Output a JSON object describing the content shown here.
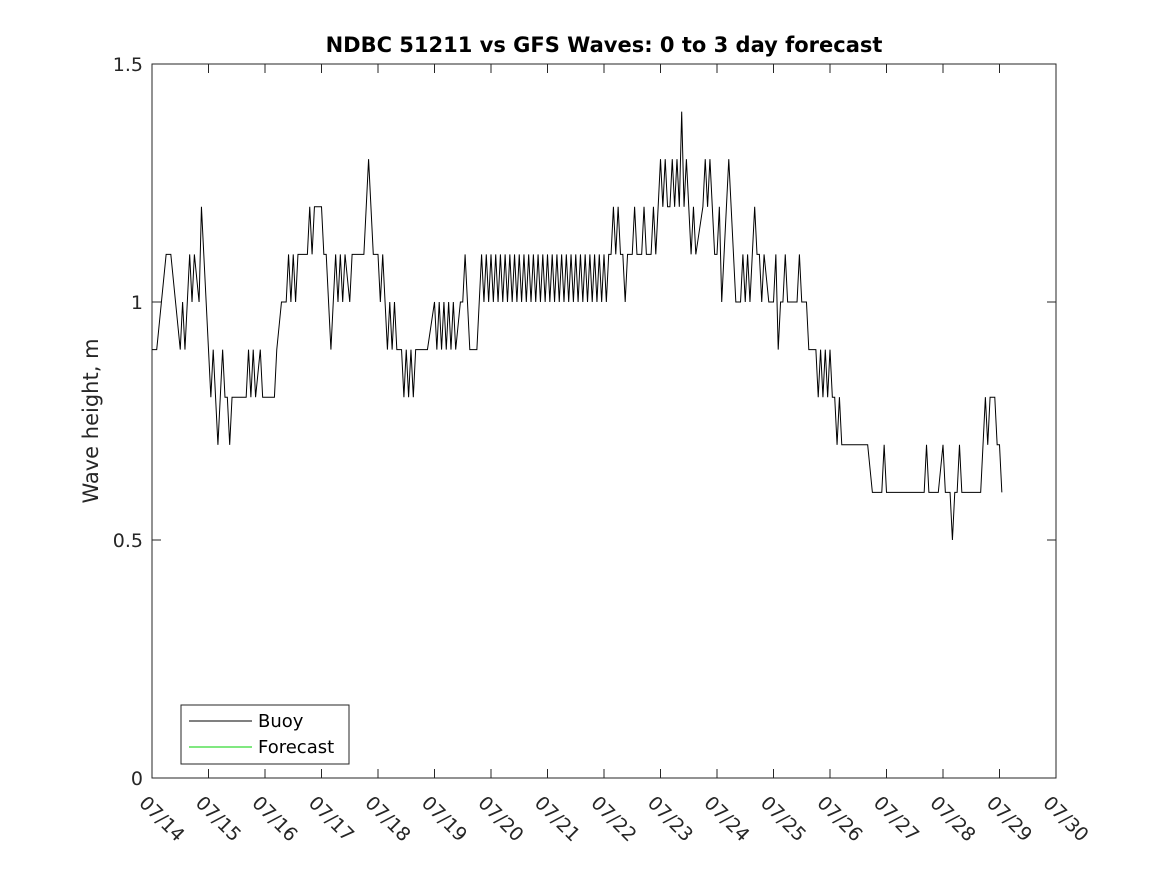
{
  "chart_data": {
    "type": "line",
    "title": "NDBC 51211 vs GFS Waves: 0 to 3 day forecast",
    "xlabel": "",
    "ylabel": "Wave height, m",
    "x_ticks": [
      "07/14",
      "07/15",
      "07/16",
      "07/17",
      "07/18",
      "07/19",
      "07/20",
      "07/21",
      "07/22",
      "07/23",
      "07/24",
      "07/25",
      "07/26",
      "07/27",
      "07/28",
      "07/29",
      "07/30"
    ],
    "xlim": [
      "2023-07-14",
      "2023-07-30"
    ],
    "y_ticks": [
      "0",
      "0.5",
      "1",
      "1.5"
    ],
    "ylim": [
      0,
      1.5
    ],
    "grid": false,
    "legend": "bottom-left",
    "series": [
      {
        "name": "Buoy",
        "color": "#000000",
        "points": [
          [
            "07/14 00:00",
            0.9
          ],
          [
            "07/14 02:00",
            0.9
          ],
          [
            "07/14 04:00",
            1.0
          ],
          [
            "07/14 06:00",
            1.1
          ],
          [
            "07/14 08:00",
            1.1
          ],
          [
            "07/14 10:00",
            1.0
          ],
          [
            "07/14 12:00",
            0.9
          ],
          [
            "07/14 13:00",
            1.0
          ],
          [
            "07/14 14:00",
            0.9
          ],
          [
            "07/14 15:00",
            1.0
          ],
          [
            "07/14 16:00",
            1.1
          ],
          [
            "07/14 17:00",
            1.0
          ],
          [
            "07/14 18:00",
            1.1
          ],
          [
            "07/14 20:00",
            1.0
          ],
          [
            "07/14 21:00",
            1.2
          ],
          [
            "07/14 22:00",
            1.1
          ],
          [
            "07/14 23:00",
            1.0
          ],
          [
            "07/15 00:00",
            0.9
          ],
          [
            "07/15 01:00",
            0.8
          ],
          [
            "07/15 02:00",
            0.9
          ],
          [
            "07/15 03:00",
            0.8
          ],
          [
            "07/15 04:00",
            0.7
          ],
          [
            "07/15 05:00",
            0.8
          ],
          [
            "07/15 06:00",
            0.9
          ],
          [
            "07/15 07:00",
            0.8
          ],
          [
            "07/15 08:00",
            0.8
          ],
          [
            "07/15 09:00",
            0.7
          ],
          [
            "07/15 10:00",
            0.8
          ],
          [
            "07/15 12:00",
            0.8
          ],
          [
            "07/15 16:00",
            0.8
          ],
          [
            "07/15 17:00",
            0.9
          ],
          [
            "07/15 18:00",
            0.8
          ],
          [
            "07/15 19:00",
            0.9
          ],
          [
            "07/15 20:00",
            0.8
          ],
          [
            "07/15 22:00",
            0.9
          ],
          [
            "07/15 23:00",
            0.8
          ],
          [
            "07/16 00:00",
            0.8
          ],
          [
            "07/16 04:00",
            0.8
          ],
          [
            "07/16 05:00",
            0.9
          ],
          [
            "07/16 07:00",
            1.0
          ],
          [
            "07/16 09:00",
            1.0
          ],
          [
            "07/16 10:00",
            1.1
          ],
          [
            "07/16 11:00",
            1.0
          ],
          [
            "07/16 12:00",
            1.1
          ],
          [
            "07/16 13:00",
            1.0
          ],
          [
            "07/16 14:00",
            1.1
          ],
          [
            "07/16 18:00",
            1.1
          ],
          [
            "07/16 19:00",
            1.2
          ],
          [
            "07/16 20:00",
            1.1
          ],
          [
            "07/16 21:00",
            1.2
          ],
          [
            "07/17 00:00",
            1.2
          ],
          [
            "07/17 01:00",
            1.1
          ],
          [
            "07/17 02:00",
            1.1
          ],
          [
            "07/17 03:00",
            1.0
          ],
          [
            "07/17 04:00",
            0.9
          ],
          [
            "07/17 05:00",
            1.0
          ],
          [
            "07/17 06:00",
            1.1
          ],
          [
            "07/17 07:00",
            1.0
          ],
          [
            "07/17 08:00",
            1.1
          ],
          [
            "07/17 09:00",
            1.0
          ],
          [
            "07/17 10:00",
            1.1
          ],
          [
            "07/17 12:00",
            1.0
          ],
          [
            "07/17 13:00",
            1.1
          ],
          [
            "07/17 18:00",
            1.1
          ],
          [
            "07/17 19:00",
            1.2
          ],
          [
            "07/17 20:00",
            1.3
          ],
          [
            "07/17 21:00",
            1.2
          ],
          [
            "07/17 22:00",
            1.1
          ],
          [
            "07/18 00:00",
            1.1
          ],
          [
            "07/18 01:00",
            1.0
          ],
          [
            "07/18 02:00",
            1.1
          ],
          [
            "07/18 03:00",
            1.0
          ],
          [
            "07/18 04:00",
            0.9
          ],
          [
            "07/18 05:00",
            1.0
          ],
          [
            "07/18 06:00",
            0.9
          ],
          [
            "07/18 07:00",
            1.0
          ],
          [
            "07/18 08:00",
            0.9
          ],
          [
            "07/18 10:00",
            0.9
          ],
          [
            "07/18 11:00",
            0.8
          ],
          [
            "07/18 12:00",
            0.9
          ],
          [
            "07/18 13:00",
            0.8
          ],
          [
            "07/18 14:00",
            0.9
          ],
          [
            "07/18 15:00",
            0.8
          ],
          [
            "07/18 16:00",
            0.9
          ],
          [
            "07/18 21:00",
            0.9
          ],
          [
            "07/19 00:00",
            1.0
          ],
          [
            "07/19 01:00",
            0.9
          ],
          [
            "07/19 02:00",
            1.0
          ],
          [
            "07/19 03:00",
            0.9
          ],
          [
            "07/19 04:00",
            1.0
          ],
          [
            "07/19 05:00",
            0.9
          ],
          [
            "07/19 06:00",
            1.0
          ],
          [
            "07/19 07:00",
            0.9
          ],
          [
            "07/19 08:00",
            1.0
          ],
          [
            "07/19 09:00",
            0.9
          ],
          [
            "07/19 11:00",
            1.0
          ],
          [
            "07/19 12:00",
            1.0
          ],
          [
            "07/19 13:00",
            1.1
          ],
          [
            "07/19 14:00",
            1.0
          ],
          [
            "07/19 15:00",
            0.9
          ],
          [
            "07/19 18:00",
            0.9
          ],
          [
            "07/19 19:00",
            1.0
          ],
          [
            "07/19 20:00",
            1.1
          ],
          [
            "07/19 21:00",
            1.0
          ],
          [
            "07/19 22:00",
            1.1
          ],
          [
            "07/19 23:00",
            1.0
          ],
          [
            "07/20 00:00",
            1.1
          ],
          [
            "07/20 01:00",
            1.0
          ],
          [
            "07/20 02:00",
            1.1
          ],
          [
            "07/20 03:00",
            1.0
          ],
          [
            "07/20 04:00",
            1.1
          ],
          [
            "07/20 05:00",
            1.0
          ],
          [
            "07/20 06:00",
            1.1
          ],
          [
            "07/20 07:00",
            1.0
          ],
          [
            "07/20 08:00",
            1.1
          ],
          [
            "07/20 09:00",
            1.0
          ],
          [
            "07/20 10:00",
            1.1
          ],
          [
            "07/20 11:00",
            1.0
          ],
          [
            "07/20 12:00",
            1.1
          ],
          [
            "07/20 13:00",
            1.0
          ],
          [
            "07/20 14:00",
            1.1
          ],
          [
            "07/20 15:00",
            1.0
          ],
          [
            "07/20 16:00",
            1.1
          ],
          [
            "07/20 17:00",
            1.0
          ],
          [
            "07/20 18:00",
            1.1
          ],
          [
            "07/20 19:00",
            1.0
          ],
          [
            "07/20 20:00",
            1.1
          ],
          [
            "07/20 21:00",
            1.0
          ],
          [
            "07/20 22:00",
            1.1
          ],
          [
            "07/20 23:00",
            1.0
          ],
          [
            "07/21 00:00",
            1.1
          ],
          [
            "07/21 01:00",
            1.0
          ],
          [
            "07/21 02:00",
            1.1
          ],
          [
            "07/21 03:00",
            1.0
          ],
          [
            "07/21 04:00",
            1.1
          ],
          [
            "07/21 05:00",
            1.0
          ],
          [
            "07/21 06:00",
            1.1
          ],
          [
            "07/21 07:00",
            1.0
          ],
          [
            "07/21 08:00",
            1.1
          ],
          [
            "07/21 09:00",
            1.0
          ],
          [
            "07/21 10:00",
            1.1
          ],
          [
            "07/21 11:00",
            1.0
          ],
          [
            "07/21 12:00",
            1.1
          ],
          [
            "07/21 13:00",
            1.0
          ],
          [
            "07/21 14:00",
            1.1
          ],
          [
            "07/21 15:00",
            1.0
          ],
          [
            "07/21 16:00",
            1.1
          ],
          [
            "07/21 17:00",
            1.0
          ],
          [
            "07/21 18:00",
            1.1
          ],
          [
            "07/21 19:00",
            1.0
          ],
          [
            "07/21 20:00",
            1.1
          ],
          [
            "07/21 21:00",
            1.0
          ],
          [
            "07/21 22:00",
            1.1
          ],
          [
            "07/21 23:00",
            1.0
          ],
          [
            "07/22 00:00",
            1.1
          ],
          [
            "07/22 01:00",
            1.0
          ],
          [
            "07/22 02:00",
            1.1
          ],
          [
            "07/22 03:00",
            1.1
          ],
          [
            "07/22 04:00",
            1.2
          ],
          [
            "07/22 05:00",
            1.1
          ],
          [
            "07/22 06:00",
            1.2
          ],
          [
            "07/22 07:00",
            1.1
          ],
          [
            "07/22 08:00",
            1.1
          ],
          [
            "07/22 09:00",
            1.0
          ],
          [
            "07/22 10:00",
            1.1
          ],
          [
            "07/22 12:00",
            1.1
          ],
          [
            "07/22 13:00",
            1.2
          ],
          [
            "07/22 14:00",
            1.1
          ],
          [
            "07/22 16:00",
            1.1
          ],
          [
            "07/22 17:00",
            1.2
          ],
          [
            "07/22 18:00",
            1.1
          ],
          [
            "07/22 20:00",
            1.1
          ],
          [
            "07/22 21:00",
            1.2
          ],
          [
            "07/22 22:00",
            1.1
          ],
          [
            "07/22 23:00",
            1.2
          ],
          [
            "07/23 00:00",
            1.3
          ],
          [
            "07/23 01:00",
            1.2
          ],
          [
            "07/23 02:00",
            1.3
          ],
          [
            "07/23 03:00",
            1.2
          ],
          [
            "07/23 04:00",
            1.2
          ],
          [
            "07/23 05:00",
            1.3
          ],
          [
            "07/23 06:00",
            1.2
          ],
          [
            "07/23 07:00",
            1.3
          ],
          [
            "07/23 08:00",
            1.2
          ],
          [
            "07/23 09:00",
            1.4
          ],
          [
            "07/23 10:00",
            1.2
          ],
          [
            "07/23 11:00",
            1.3
          ],
          [
            "07/23 12:00",
            1.2
          ],
          [
            "07/23 13:00",
            1.1
          ],
          [
            "07/23 14:00",
            1.2
          ],
          [
            "07/23 15:00",
            1.1
          ],
          [
            "07/23 18:00",
            1.2
          ],
          [
            "07/23 19:00",
            1.3
          ],
          [
            "07/23 20:00",
            1.2
          ],
          [
            "07/23 21:00",
            1.3
          ],
          [
            "07/23 22:00",
            1.2
          ],
          [
            "07/23 23:00",
            1.1
          ],
          [
            "07/24 00:00",
            1.1
          ],
          [
            "07/24 01:00",
            1.2
          ],
          [
            "07/24 02:00",
            1.0
          ],
          [
            "07/24 03:00",
            1.1
          ],
          [
            "07/24 04:00",
            1.2
          ],
          [
            "07/24 05:00",
            1.3
          ],
          [
            "07/24 06:00",
            1.2
          ],
          [
            "07/24 07:00",
            1.1
          ],
          [
            "07/24 08:00",
            1.0
          ],
          [
            "07/24 10:00",
            1.0
          ],
          [
            "07/24 11:00",
            1.1
          ],
          [
            "07/24 12:00",
            1.0
          ],
          [
            "07/24 13:00",
            1.1
          ],
          [
            "07/24 14:00",
            1.0
          ],
          [
            "07/24 15:00",
            1.1
          ],
          [
            "07/24 16:00",
            1.2
          ],
          [
            "07/24 17:00",
            1.1
          ],
          [
            "07/24 18:00",
            1.1
          ],
          [
            "07/24 19:00",
            1.0
          ],
          [
            "07/24 20:00",
            1.1
          ],
          [
            "07/24 22:00",
            1.0
          ],
          [
            "07/24 23:00",
            1.0
          ],
          [
            "07/25 00:00",
            1.0
          ],
          [
            "07/25 01:00",
            1.1
          ],
          [
            "07/25 02:00",
            0.9
          ],
          [
            "07/25 03:00",
            1.0
          ],
          [
            "07/25 04:00",
            1.0
          ],
          [
            "07/25 05:00",
            1.1
          ],
          [
            "07/25 06:00",
            1.0
          ],
          [
            "07/25 10:00",
            1.0
          ],
          [
            "07/25 11:00",
            1.1
          ],
          [
            "07/25 12:00",
            1.0
          ],
          [
            "07/25 14:00",
            1.0
          ],
          [
            "07/25 15:00",
            0.9
          ],
          [
            "07/25 18:00",
            0.9
          ],
          [
            "07/25 19:00",
            0.8
          ],
          [
            "07/25 20:00",
            0.9
          ],
          [
            "07/25 21:00",
            0.8
          ],
          [
            "07/25 22:00",
            0.9
          ],
          [
            "07/25 23:00",
            0.8
          ],
          [
            "07/26 00:00",
            0.9
          ],
          [
            "07/26 01:00",
            0.8
          ],
          [
            "07/26 02:00",
            0.8
          ],
          [
            "07/26 03:00",
            0.7
          ],
          [
            "07/26 04:00",
            0.8
          ],
          [
            "07/26 05:00",
            0.7
          ],
          [
            "07/26 08:00",
            0.7
          ],
          [
            "07/26 12:00",
            0.7
          ],
          [
            "07/26 16:00",
            0.7
          ],
          [
            "07/26 18:00",
            0.6
          ],
          [
            "07/26 22:00",
            0.6
          ],
          [
            "07/26 23:00",
            0.7
          ],
          [
            "07/27 00:00",
            0.6
          ],
          [
            "07/27 06:00",
            0.6
          ],
          [
            "07/27 12:00",
            0.6
          ],
          [
            "07/27 16:00",
            0.6
          ],
          [
            "07/27 17:00",
            0.7
          ],
          [
            "07/27 18:00",
            0.6
          ],
          [
            "07/27 22:00",
            0.6
          ],
          [
            "07/28 00:00",
            0.7
          ],
          [
            "07/28 01:00",
            0.6
          ],
          [
            "07/28 03:00",
            0.6
          ],
          [
            "07/28 04:00",
            0.5
          ],
          [
            "07/28 05:00",
            0.6
          ],
          [
            "07/28 06:00",
            0.6
          ],
          [
            "07/28 07:00",
            0.7
          ],
          [
            "07/28 08:00",
            0.6
          ],
          [
            "07/28 12:00",
            0.6
          ],
          [
            "07/28 16:00",
            0.6
          ],
          [
            "07/28 17:00",
            0.7
          ],
          [
            "07/28 18:00",
            0.8
          ],
          [
            "07/28 19:00",
            0.7
          ],
          [
            "07/28 20:00",
            0.8
          ],
          [
            "07/28 22:00",
            0.8
          ],
          [
            "07/28 23:00",
            0.7
          ],
          [
            "07/29 00:00",
            0.7
          ],
          [
            "07/29 01:00",
            0.6
          ]
        ]
      },
      {
        "name": "Forecast",
        "color": "#00d000",
        "points": []
      }
    ]
  }
}
